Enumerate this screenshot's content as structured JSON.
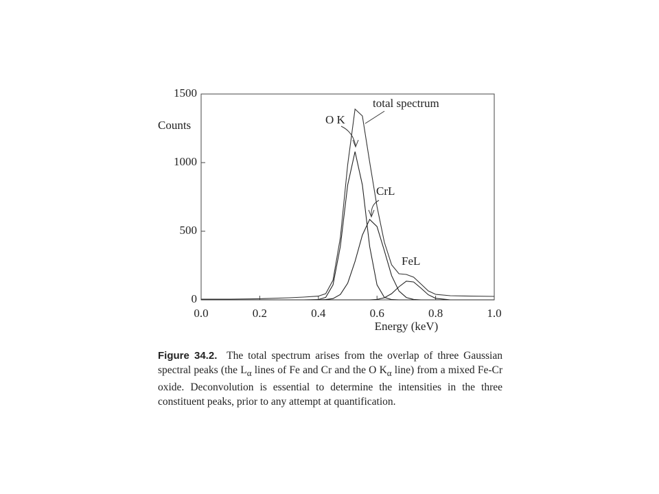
{
  "chart_data": {
    "type": "line",
    "y_label": "Counts",
    "x_label": "Energy (keV)",
    "x": [
      0,
      0.1,
      0.2,
      0.3,
      0.35,
      0.4,
      0.425,
      0.45,
      0.475,
      0.5,
      0.525,
      0.55,
      0.575,
      0.6,
      0.625,
      0.65,
      0.675,
      0.7,
      0.725,
      0.75,
      0.775,
      0.8,
      0.85,
      0.9,
      1.0
    ],
    "series": [
      {
        "name": "total spectrum",
        "color": "#333333",
        "values": [
          5,
          5,
          8,
          15,
          20,
          27,
          45,
          143,
          453,
          985,
          1390,
          1340,
          1005,
          680,
          420,
          255,
          190,
          185,
          165,
          115,
          65,
          40,
          30,
          28,
          25
        ]
      },
      {
        "name": "O K",
        "color": "#222222",
        "values": [
          0,
          0,
          0,
          0,
          0,
          2,
          18,
          109,
          389,
          837,
          1080,
          837,
          389,
          109,
          18,
          2,
          0,
          0,
          0,
          0,
          0,
          0,
          0,
          0,
          0
        ]
      },
      {
        "name": "CrL",
        "color": "#222222",
        "values": [
          0,
          0,
          0,
          0,
          0,
          0,
          2,
          9,
          39,
          121,
          280,
          472,
          586,
          534,
          358,
          176,
          64,
          17,
          3,
          0,
          0,
          0,
          0,
          0,
          0
        ]
      },
      {
        "name": "FeL",
        "color": "#222222",
        "values": [
          0,
          0,
          0,
          0,
          0,
          0,
          0,
          0,
          0,
          0,
          0,
          0,
          0,
          3,
          15,
          45,
          95,
          136,
          130,
          85,
          37,
          11,
          0,
          0,
          0
        ]
      }
    ],
    "xlim": [
      0,
      1
    ],
    "ylim": [
      0,
      1500
    ],
    "xticks": [
      {
        "value": 0,
        "label": "0.0"
      },
      0.2,
      0.4,
      0.6,
      0.8,
      {
        "value": 1,
        "label": "1.0"
      }
    ],
    "yticks": [
      0,
      500,
      1000,
      1500
    ],
    "grid": false
  },
  "caption": {
    "label": "Figure 34.2.",
    "parts": [
      "The total spectrum arises from the overlap of three Gaussian spectral peaks (the L",
      "α",
      " lines of Fe and Cr and the O K",
      "α",
      " line) from a mixed Fe-Cr oxide. Deconvolution is essential to determine the intensities in the three constituent peaks, prior to any attempt at quantification."
    ]
  }
}
